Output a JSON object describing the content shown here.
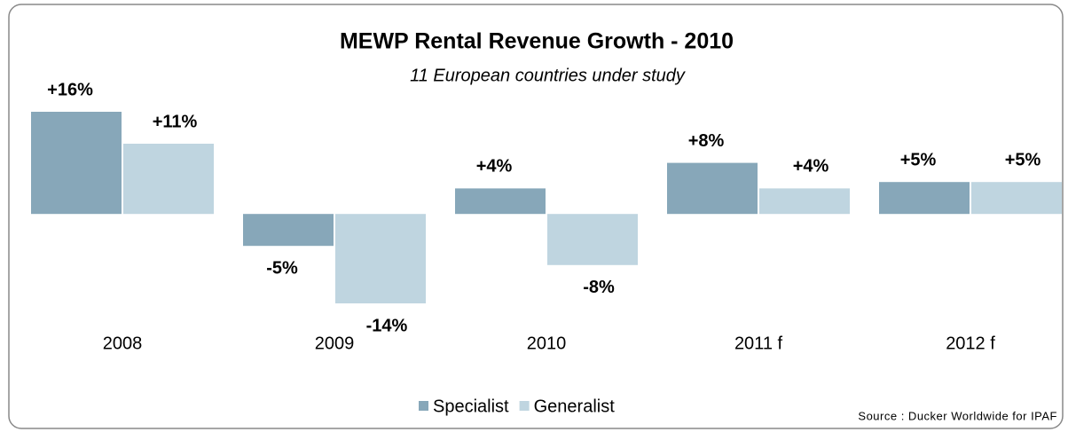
{
  "chart_data": {
    "type": "bar",
    "title": "MEWP Rental Revenue Growth - 2010",
    "subtitle": "11 European countries under study",
    "source": "Source : Ducker Worldwide for IPAF",
    "categories": [
      "2008",
      "2009",
      "2010",
      "2011 f",
      "2012 f"
    ],
    "series": [
      {
        "name": "Specialist",
        "color": "#87a7b9",
        "values": [
          16,
          -5,
          4,
          8,
          5
        ],
        "value_labels": [
          "+16%",
          "-5%",
          "+4%",
          "+8%",
          "+5%"
        ]
      },
      {
        "name": "Generalist",
        "color": "#bfd5e0",
        "values": [
          11,
          -14,
          -8,
          4,
          5
        ],
        "value_labels": [
          "+11%",
          "-14%",
          "-8%",
          "+4%",
          "+5%"
        ]
      }
    ],
    "ylim": [
      -14,
      16
    ],
    "legend": "bottom"
  }
}
